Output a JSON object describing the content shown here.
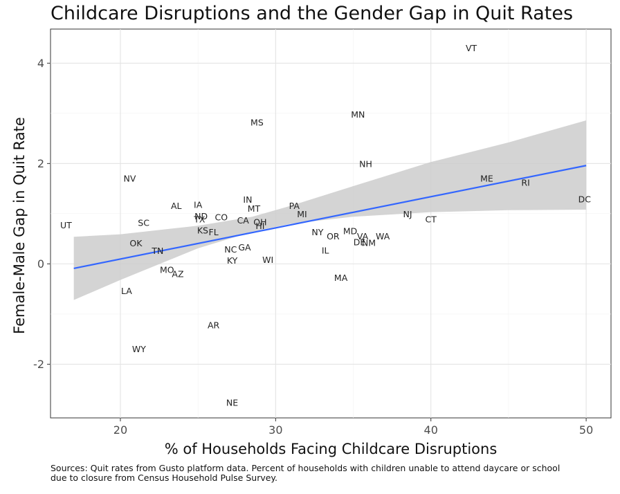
{
  "chart_data": {
    "type": "scatter",
    "title": "Childcare Disruptions and the Gender Gap in Quit Rates",
    "xlabel": "% of Households Facing Childcare Disruptions",
    "ylabel": "Female-Male Gap in Quit Rate",
    "caption_lines": [
      "Sources: Quit rates from Gusto platform data. Percent of households with children unable to attend daycare or school",
      "due to closure from Census Household Pulse Survey."
    ],
    "xlim": [
      15.5,
      51.6
    ],
    "ylim": [
      -3.07,
      4.68
    ],
    "xticks": [
      20,
      30,
      40,
      50
    ],
    "yticks": [
      -2,
      0,
      2,
      4
    ],
    "xtick_labels": [
      "20",
      "30",
      "40",
      "50"
    ],
    "ytick_labels": [
      "-2",
      "0",
      "2",
      "4"
    ],
    "grid": true,
    "fit_line": {
      "x": [
        17.0,
        50.0
      ],
      "y": [
        -0.09,
        1.96
      ],
      "color": "#3366FF"
    },
    "confidence_band": {
      "x": [
        17.0,
        20.0,
        25.0,
        28.5,
        31.0,
        35.0,
        40.0,
        45.0,
        50.0
      ],
      "lower": [
        -0.72,
        -0.32,
        0.31,
        0.64,
        0.8,
        0.94,
        1.03,
        1.07,
        1.08
      ],
      "upper": [
        0.54,
        0.59,
        0.76,
        0.94,
        1.16,
        1.55,
        2.03,
        2.42,
        2.86
      ],
      "color": "#cccccc"
    },
    "points": [
      {
        "label": "VT",
        "x": 42.6,
        "y": 4.3
      },
      {
        "label": "MN",
        "x": 35.3,
        "y": 2.98
      },
      {
        "label": "MS",
        "x": 28.8,
        "y": 2.82
      },
      {
        "label": "NH",
        "x": 35.8,
        "y": 1.99
      },
      {
        "label": "NV",
        "x": 20.6,
        "y": 1.7
      },
      {
        "label": "ME",
        "x": 43.6,
        "y": 1.7
      },
      {
        "label": "RI",
        "x": 46.1,
        "y": 1.62
      },
      {
        "label": "DC",
        "x": 49.9,
        "y": 1.29
      },
      {
        "label": "IN",
        "x": 28.2,
        "y": 1.28
      },
      {
        "label": "AL",
        "x": 23.6,
        "y": 1.16
      },
      {
        "label": "IA",
        "x": 25.0,
        "y": 1.18
      },
      {
        "label": "PA",
        "x": 31.2,
        "y": 1.16
      },
      {
        "label": "MT",
        "x": 28.6,
        "y": 1.1
      },
      {
        "label": "MI",
        "x": 31.7,
        "y": 0.99
      },
      {
        "label": "NJ",
        "x": 38.5,
        "y": 0.99
      },
      {
        "label": "ND",
        "x": 25.2,
        "y": 0.95
      },
      {
        "label": "CO",
        "x": 26.5,
        "y": 0.93
      },
      {
        "label": "TX",
        "x": 25.1,
        "y": 0.89
      },
      {
        "label": "CA",
        "x": 27.9,
        "y": 0.87
      },
      {
        "label": "CT",
        "x": 40.0,
        "y": 0.89
      },
      {
        "label": "SC",
        "x": 21.5,
        "y": 0.82
      },
      {
        "label": "OH",
        "x": 29.0,
        "y": 0.83
      },
      {
        "label": "HI",
        "x": 29.0,
        "y": 0.76
      },
      {
        "label": "UT",
        "x": 16.5,
        "y": 0.77
      },
      {
        "label": "KS",
        "x": 25.3,
        "y": 0.67
      },
      {
        "label": "FL",
        "x": 26.0,
        "y": 0.63
      },
      {
        "label": "NY",
        "x": 32.7,
        "y": 0.63
      },
      {
        "label": "MD",
        "x": 34.8,
        "y": 0.65
      },
      {
        "label": "OR",
        "x": 33.7,
        "y": 0.55
      },
      {
        "label": "VA",
        "x": 35.6,
        "y": 0.55
      },
      {
        "label": "WA",
        "x": 36.9,
        "y": 0.55
      },
      {
        "label": "DE",
        "x": 35.4,
        "y": 0.43
      },
      {
        "label": "NM",
        "x": 36.0,
        "y": 0.42
      },
      {
        "label": "OK",
        "x": 21.0,
        "y": 0.41
      },
      {
        "label": "GA",
        "x": 28.0,
        "y": 0.33
      },
      {
        "label": "NC",
        "x": 27.1,
        "y": 0.29
      },
      {
        "label": "TN",
        "x": 22.4,
        "y": 0.26
      },
      {
        "label": "IL",
        "x": 33.2,
        "y": 0.27
      },
      {
        "label": "KY",
        "x": 27.2,
        "y": 0.07
      },
      {
        "label": "WI",
        "x": 29.5,
        "y": 0.08
      },
      {
        "label": "MO",
        "x": 23.0,
        "y": -0.12
      },
      {
        "label": "AZ",
        "x": 23.7,
        "y": -0.2
      },
      {
        "label": "MA",
        "x": 34.2,
        "y": -0.28
      },
      {
        "label": "LA",
        "x": 20.4,
        "y": -0.54
      },
      {
        "label": "AR",
        "x": 26.0,
        "y": -1.22
      },
      {
        "label": "WY",
        "x": 21.2,
        "y": -1.7
      },
      {
        "label": "NE",
        "x": 27.2,
        "y": -2.77
      }
    ]
  }
}
